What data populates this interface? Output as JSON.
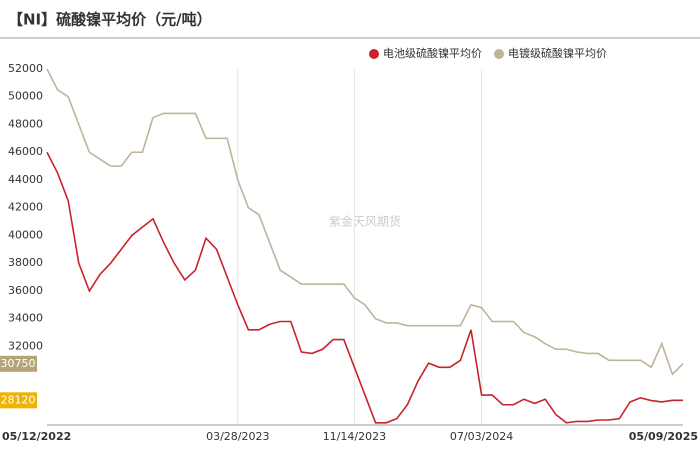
{
  "chart_data": {
    "type": "line",
    "title": "【NI】硫酸镍平均价（元/吨）",
    "watermark": "紫金天风期货",
    "categories": [
      "05/12/2022",
      null,
      null,
      null,
      null,
      null,
      null,
      null,
      null,
      null,
      null,
      null,
      null,
      null,
      null,
      null,
      null,
      null,
      "03/28/2023",
      null,
      null,
      null,
      null,
      null,
      null,
      null,
      null,
      null,
      null,
      "11/14/2023",
      null,
      null,
      null,
      null,
      null,
      null,
      null,
      null,
      null,
      null,
      null,
      "07/03/2024",
      null,
      null,
      null,
      null,
      null,
      null,
      null,
      null,
      null,
      null,
      null,
      null,
      null,
      null,
      null,
      null,
      null,
      null,
      "05/09/2025"
    ],
    "series": [
      {
        "name": "电池级硫酸镍平均价",
        "color": "#c8232c",
        "values": [
          46000,
          44500,
          42500,
          38000,
          36000,
          37200,
          38000,
          39000,
          40000,
          40600,
          41200,
          39500,
          38000,
          36800,
          37500,
          39800,
          39000,
          37000,
          35000,
          33200,
          33200,
          33600,
          33800,
          33800,
          31600,
          31500,
          31800,
          32500,
          32500,
          30500,
          28500,
          26500,
          26500,
          26800,
          27800,
          29500,
          30800,
          30500,
          30500,
          31000,
          33200,
          28500,
          28500,
          27800,
          27800,
          28200,
          27900,
          28200,
          27100,
          26500,
          26600,
          26600,
          26700,
          26700,
          26800,
          28000,
          28300,
          28100,
          28000,
          28120,
          28120
        ]
      },
      {
        "name": "电镀级硫酸镍平均价",
        "color": "#bfb39a",
        "values": [
          52000,
          50500,
          50000,
          48000,
          46000,
          45500,
          45000,
          45000,
          46000,
          46000,
          48500,
          48800,
          48800,
          48800,
          48800,
          47000,
          47000,
          47000,
          44000,
          42000,
          41500,
          39500,
          37500,
          37000,
          36500,
          36500,
          36500,
          36500,
          36500,
          35500,
          35000,
          34000,
          33700,
          33700,
          33500,
          33500,
          33500,
          33500,
          33500,
          33500,
          35000,
          34800,
          33800,
          33800,
          33800,
          33000,
          32700,
          32200,
          31800,
          31800,
          31600,
          31500,
          31500,
          31000,
          31000,
          31000,
          31000,
          30500,
          32200,
          30000,
          30750
        ]
      }
    ],
    "badge_colors": [
      "#f0b400",
      "#b5a47a"
    ],
    "ylim": [
      26340,
      52000
    ],
    "yticks": [
      32000,
      34000,
      36000,
      38000,
      40000,
      42000,
      44000,
      46000,
      48000,
      50000,
      52000
    ],
    "grid": true
  }
}
